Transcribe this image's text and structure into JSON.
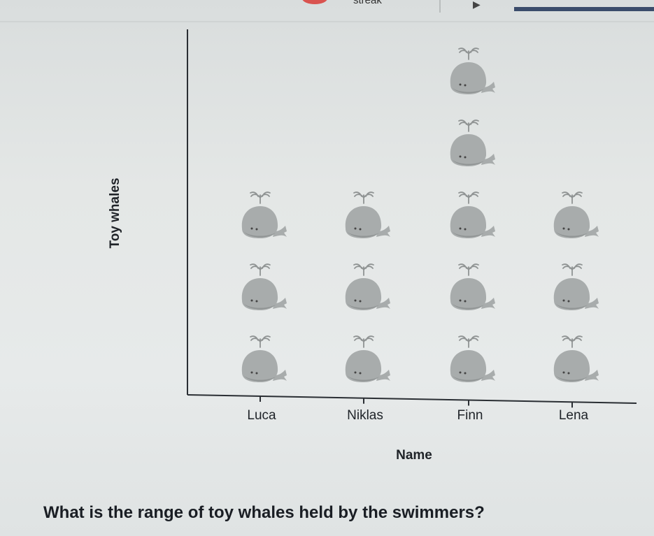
{
  "header": {
    "streak_label": "streak",
    "progress_fraction": 1.0
  },
  "question": "What is the range of toy whales held by the swimmers?",
  "colors": {
    "whale": "#a8acac",
    "whale_dark": "#8f9393",
    "axis": "#2a2e33"
  },
  "icons": {
    "unit": "whale-icon"
  },
  "chart_data": {
    "type": "pictograph",
    "categories": [
      "Luca",
      "Niklas",
      "Finn",
      "Lena"
    ],
    "values": [
      3,
      3,
      5,
      3
    ],
    "xlabel": "Name",
    "ylabel": "Toy whales",
    "unit_icon": "whale",
    "grid": false
  }
}
